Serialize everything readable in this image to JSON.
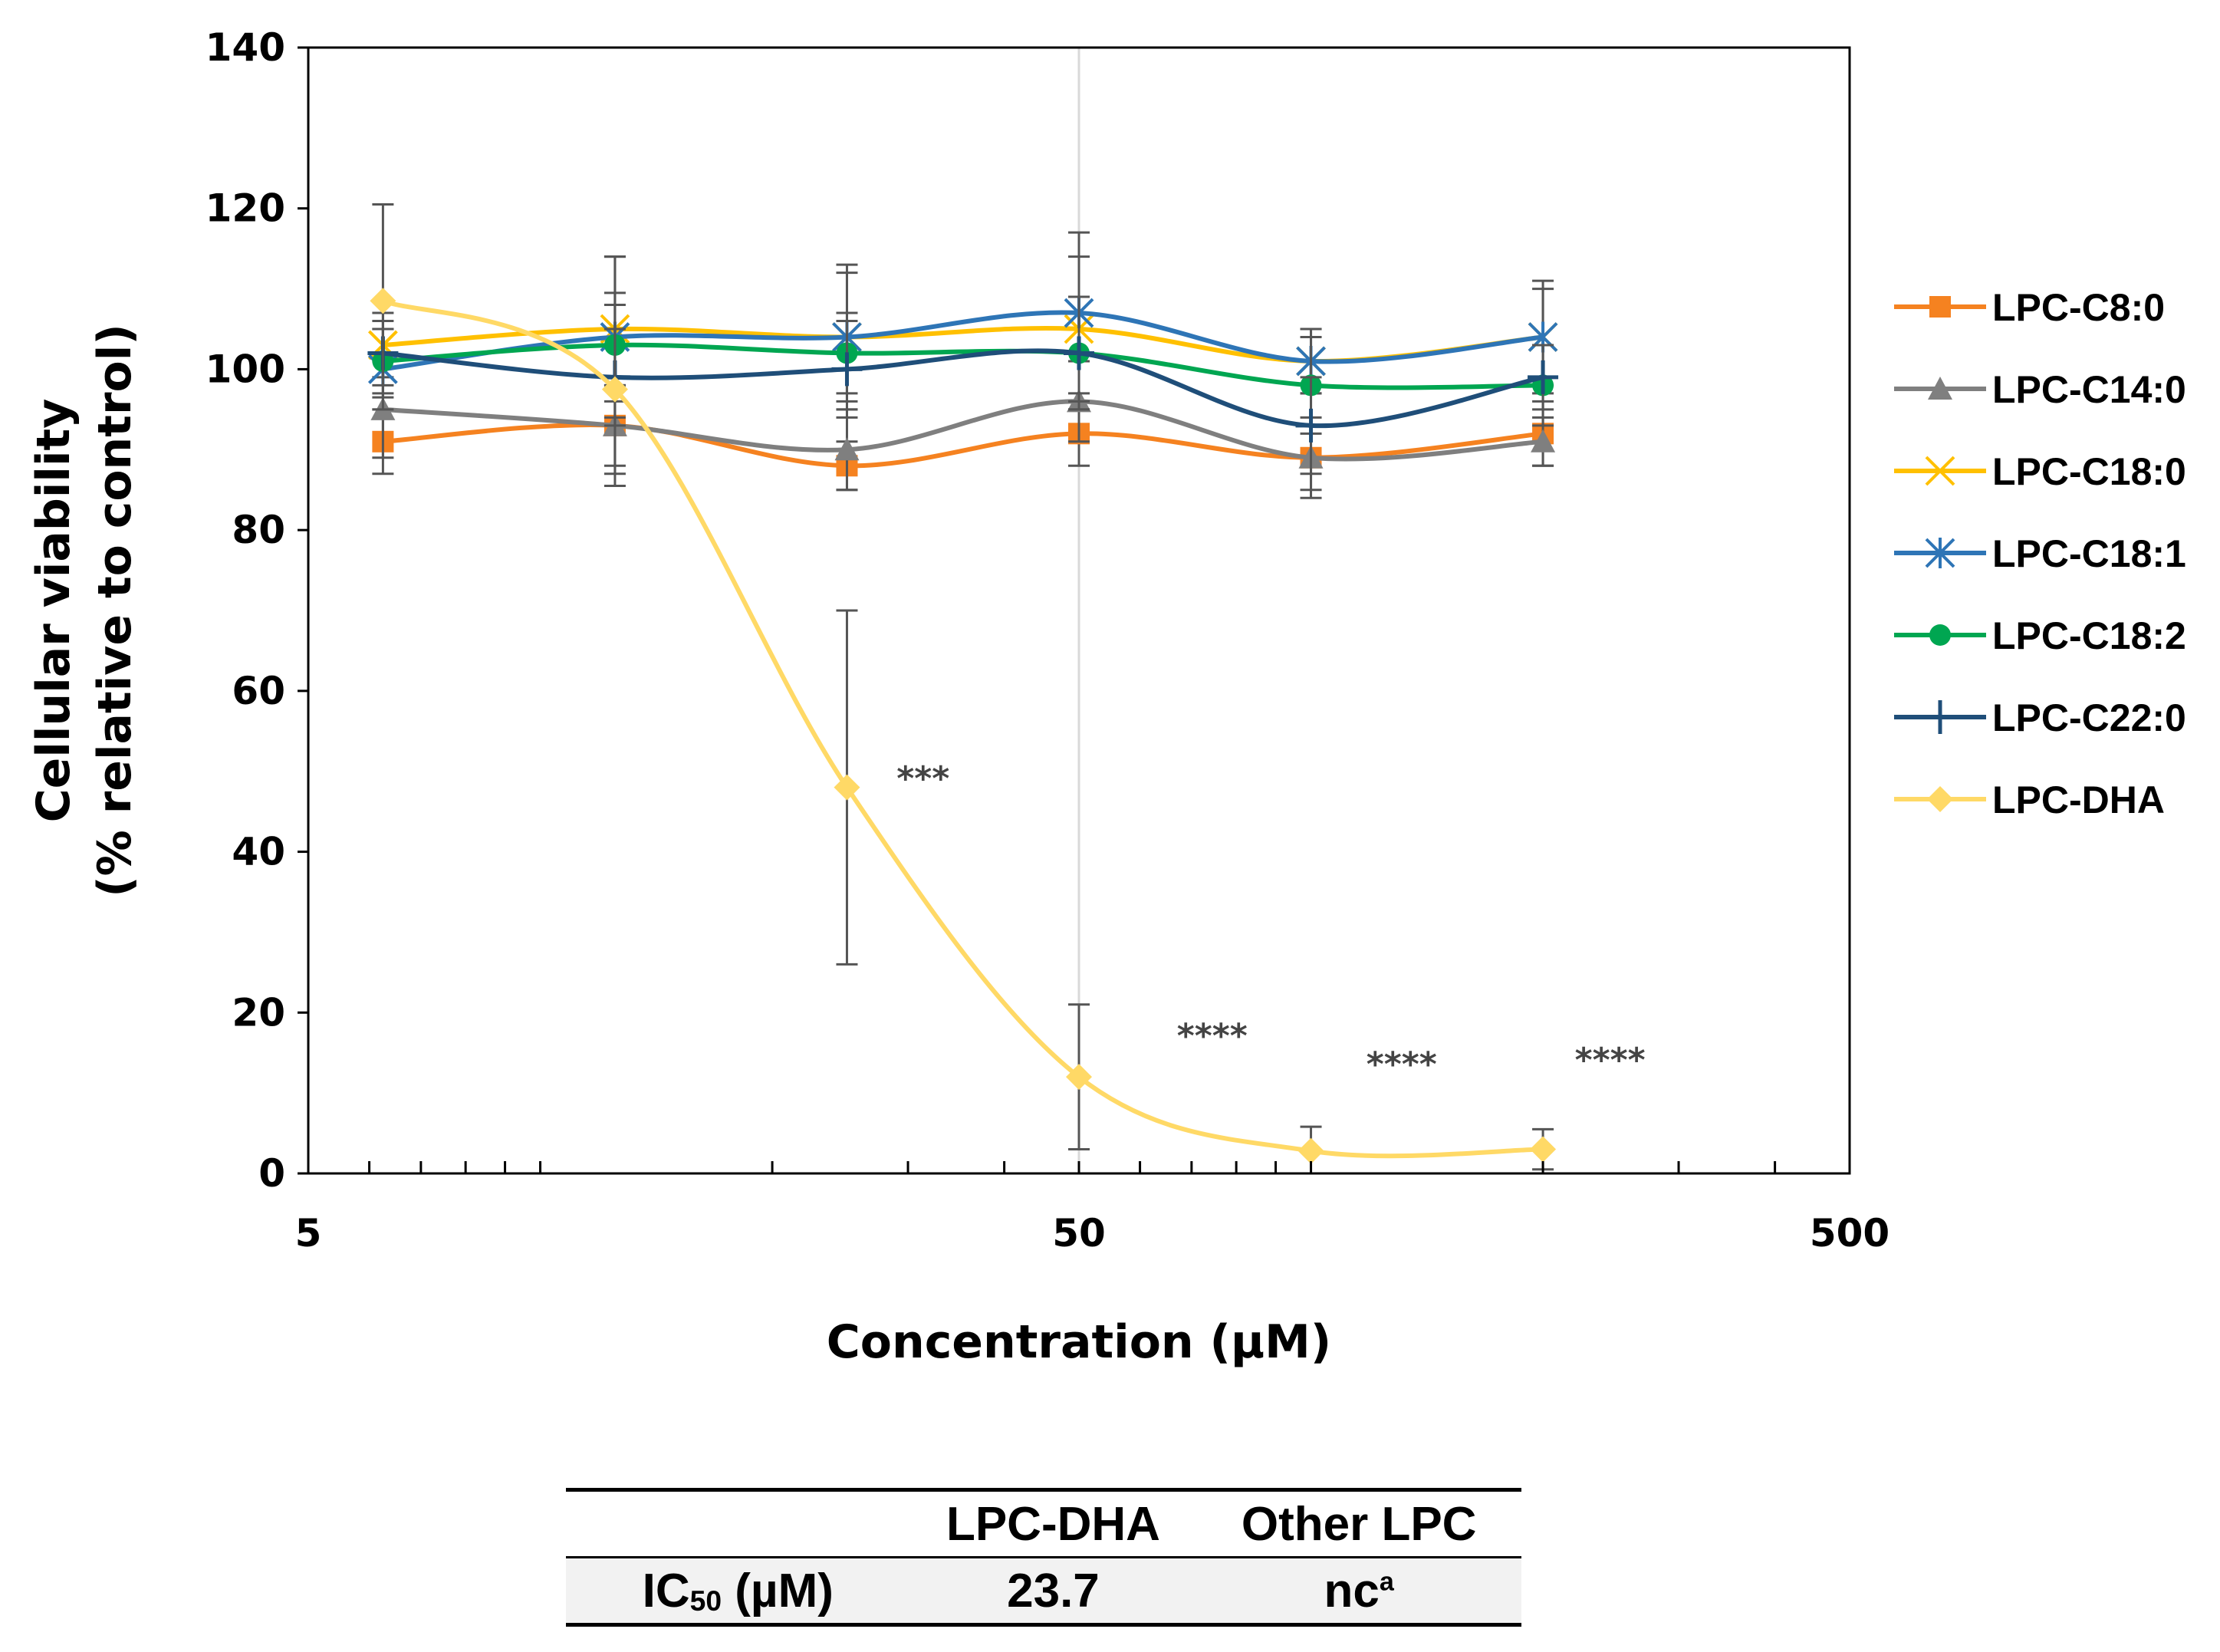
{
  "chart_data": {
    "type": "line",
    "x_scale": "log",
    "xlabel": "Concentration (µM)",
    "ylabel_line1": "Cellular viability",
    "ylabel_line2": "(% relative to control)",
    "xlim": [
      5,
      500
    ],
    "ylim": [
      0,
      140
    ],
    "x_ticks": [
      5,
      50,
      500
    ],
    "y_ticks": [
      0,
      20,
      40,
      60,
      80,
      100,
      120,
      140
    ],
    "x": [
      6.25,
      12.5,
      25,
      50,
      100,
      200
    ],
    "legend_position": "right",
    "series": [
      {
        "name": "LPC-C8:0",
        "color": "#f58220",
        "marker": "square",
        "values": [
          91,
          93,
          88,
          92,
          89,
          92
        ],
        "errors": [
          4,
          5,
          3,
          4,
          5,
          4
        ]
      },
      {
        "name": "LPC-C14:0",
        "color": "#7f7f7f",
        "marker": "triangle",
        "values": [
          95,
          93,
          90,
          96,
          89,
          91
        ],
        "errors": [
          6,
          6,
          5,
          5,
          4,
          3
        ]
      },
      {
        "name": "LPC-C18:0",
        "color": "#ffc000",
        "marker": "x",
        "values": [
          103,
          105,
          104,
          105,
          101,
          104
        ],
        "errors": [
          4,
          9,
          8,
          9,
          4,
          6
        ]
      },
      {
        "name": "LPC-C18:1",
        "color": "#2e75b6",
        "marker": "star",
        "values": [
          100,
          104,
          104,
          107,
          101,
          104
        ],
        "errors": [
          5,
          10,
          9,
          10,
          4,
          7
        ]
      },
      {
        "name": "LPC-C18:2",
        "color": "#00a651",
        "marker": "circle",
        "values": [
          101,
          103,
          102,
          102,
          98,
          98
        ],
        "errors": [
          4,
          5,
          5,
          7,
          6,
          5
        ]
      },
      {
        "name": "LPC-C22:0",
        "color": "#1f4e79",
        "marker": "plus",
        "values": [
          102,
          99,
          100,
          102,
          93,
          99
        ],
        "errors": [
          4,
          6,
          6,
          7,
          6,
          4
        ]
      },
      {
        "name": "LPC-DHA",
        "color": "#ffd966",
        "marker": "diamond",
        "values": [
          108.5,
          97.5,
          48,
          12,
          2.8,
          3.0
        ],
        "errors": [
          12,
          12,
          22,
          9,
          3,
          2.5
        ]
      }
    ],
    "annotations": [
      {
        "text": "***",
        "x": 29,
        "y": 49
      },
      {
        "text": "****",
        "x": 67,
        "y": 17
      },
      {
        "text": "****",
        "x": 118,
        "y": 13.5
      },
      {
        "text": "****",
        "x": 220,
        "y": 14
      }
    ]
  },
  "ic50_table": {
    "header": [
      "",
      "LPC-DHA",
      "Other LPC"
    ],
    "row_label": "IC",
    "row_label_sub": "50",
    "row_label_unit": " (µM)",
    "lpc_dha_value": "23.7",
    "other_lpc_value": "nc",
    "other_lpc_superscript": "a"
  }
}
